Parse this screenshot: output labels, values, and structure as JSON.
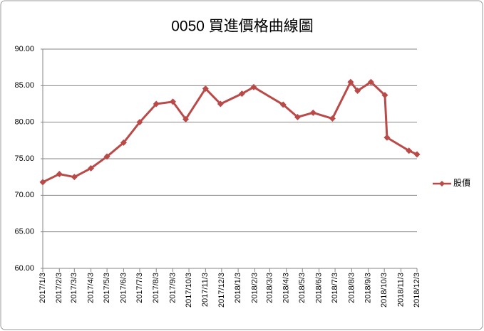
{
  "chart_data": {
    "type": "line",
    "title": "0050 買進價格曲線圖",
    "x": [
      "2017/1/3",
      "2017/2/3",
      "2017/3/3",
      "2017/4/3",
      "2017/5/3",
      "2017/6/3",
      "2017/7/3",
      "2017/8/3",
      "2017/9/3",
      "2017/9/27",
      "2017/11/3",
      "2017/12/1",
      "2018/1/10",
      "2018/2/1",
      "2018/3/28",
      "2018/4/24",
      "2018/5/23",
      "2018/6/28",
      "2018/8/1",
      "2018/8/14",
      "2018/9/8",
      "2018/10/4",
      "2018/10/8",
      "2018/11/18",
      "2018/12/3"
    ],
    "series": [
      {
        "name": "股價",
        "color": "#b94a48",
        "values": [
          71.8,
          72.9,
          72.5,
          73.7,
          75.3,
          77.2,
          80.0,
          82.5,
          82.8,
          80.4,
          84.6,
          82.5,
          83.9,
          84.8,
          82.4,
          80.7,
          81.3,
          80.5,
          85.5,
          84.3,
          85.5,
          83.7,
          77.9,
          76.1,
          75.6
        ]
      }
    ],
    "xlim": [
      "2017/1/3",
      "2018/12/3"
    ],
    "xticks": [
      "2017/1/3",
      "2017/2/3",
      "2017/3/3",
      "2017/4/3",
      "2017/5/3",
      "2017/6/3",
      "2017/7/3",
      "2017/8/3",
      "2017/9/3",
      "2017/10/3",
      "2017/11/3",
      "2017/12/3",
      "2018/1/3",
      "2018/2/3",
      "2018/3/3",
      "2018/4/3",
      "2018/5/3",
      "2018/6/3",
      "2018/7/3",
      "2018/8/3",
      "2018/9/3",
      "2018/10/3",
      "2018/11/3",
      "2018/12/3"
    ],
    "ylim": [
      60,
      90
    ],
    "yticks": [
      {
        "value": 60,
        "label": "60.00"
      },
      {
        "value": 65,
        "label": "65.00"
      },
      {
        "value": 70,
        "label": "70.00"
      },
      {
        "value": 75,
        "label": "75.00"
      },
      {
        "value": 80,
        "label": "80.00"
      },
      {
        "value": 85,
        "label": "85.00"
      },
      {
        "value": 90,
        "label": "90.00"
      }
    ],
    "grid": true,
    "legend": "right"
  }
}
